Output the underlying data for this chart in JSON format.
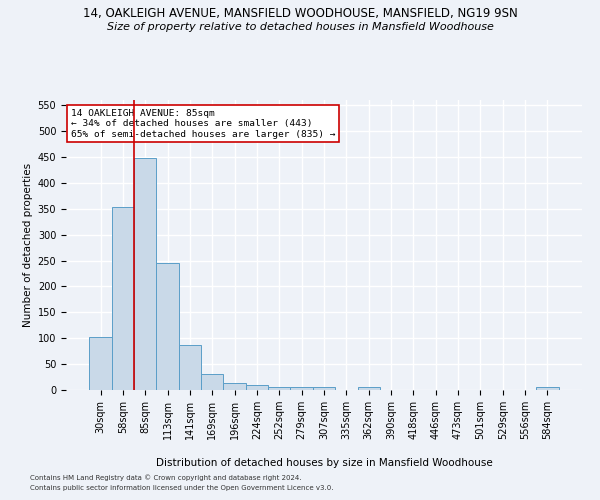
{
  "title": "14, OAKLEIGH AVENUE, MANSFIELD WOODHOUSE, MANSFIELD, NG19 9SN",
  "subtitle": "Size of property relative to detached houses in Mansfield Woodhouse",
  "xlabel": "Distribution of detached houses by size in Mansfield Woodhouse",
  "ylabel": "Number of detached properties",
  "footnote1": "Contains HM Land Registry data © Crown copyright and database right 2024.",
  "footnote2": "Contains public sector information licensed under the Open Government Licence v3.0.",
  "bar_color": "#c9d9e8",
  "bar_edgecolor": "#5a9ec8",
  "vline_color": "#cc0000",
  "annotation_text": "14 OAKLEIGH AVENUE: 85sqm\n← 34% of detached houses are smaller (443)\n65% of semi-detached houses are larger (835) →",
  "annotation_box_edgecolor": "#cc0000",
  "categories": [
    "30sqm",
    "58sqm",
    "85sqm",
    "113sqm",
    "141sqm",
    "169sqm",
    "196sqm",
    "224sqm",
    "252sqm",
    "279sqm",
    "307sqm",
    "335sqm",
    "362sqm",
    "390sqm",
    "418sqm",
    "446sqm",
    "473sqm",
    "501sqm",
    "529sqm",
    "556sqm",
    "584sqm"
  ],
  "values": [
    103,
    353,
    448,
    245,
    87,
    30,
    13,
    9,
    5,
    5,
    5,
    0,
    5,
    0,
    0,
    0,
    0,
    0,
    0,
    0,
    5
  ],
  "ylim": [
    0,
    560
  ],
  "yticks": [
    0,
    50,
    100,
    150,
    200,
    250,
    300,
    350,
    400,
    450,
    500,
    550
  ],
  "background_color": "#eef2f8",
  "grid_color": "#ffffff",
  "title_fontsize": 8.5,
  "subtitle_fontsize": 8.0,
  "axis_label_fontsize": 7.5,
  "tick_fontsize": 7.0,
  "footnote_fontsize": 5.0
}
